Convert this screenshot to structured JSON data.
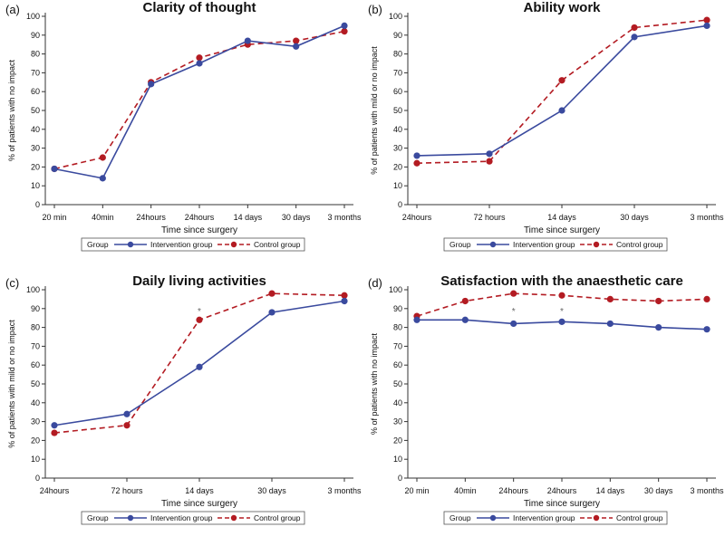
{
  "colors": {
    "intervention": "#3a4a9e",
    "control": "#b31b22"
  },
  "chart_data": [
    {
      "panel_label": "(a)",
      "type": "line",
      "title": "Clarity of thought",
      "xlabel": "Time since surgery",
      "ylabel": "% of patients with no impact",
      "ylim": [
        0,
        100
      ],
      "yticks": [
        "0",
        "10",
        "20",
        "30",
        "40",
        "50",
        "60",
        "70",
        "80",
        "90",
        "100"
      ],
      "categories": [
        "20 min",
        "40min",
        "24hours",
        "24hours",
        "14 days",
        "30 days",
        "3 months"
      ],
      "series": [
        {
          "name": "Intervention group",
          "values": [
            19,
            14,
            64,
            75,
            87,
            84,
            95
          ]
        },
        {
          "name": "Control group",
          "values": [
            19,
            25,
            65,
            78,
            85,
            87,
            92
          ]
        }
      ],
      "annotations": [],
      "legend_title": "Group",
      "legend_intervention": "Intervention group",
      "legend_control": "Control group"
    },
    {
      "panel_label": "(b)",
      "type": "line",
      "title": "Ability work",
      "xlabel": "Time since surgery",
      "ylabel": "% of patients with mild or no impact",
      "ylim": [
        0,
        100
      ],
      "yticks": [
        "0",
        "10",
        "20",
        "30",
        "40",
        "50",
        "60",
        "70",
        "80",
        "90",
        "100"
      ],
      "categories": [
        "24hours",
        "72 hours",
        "14 days",
        "30 days",
        "3 months"
      ],
      "series": [
        {
          "name": "Intervention group",
          "values": [
            26,
            27,
            50,
            89,
            95
          ]
        },
        {
          "name": "Control group",
          "values": [
            22,
            23,
            66,
            94,
            98
          ]
        }
      ],
      "annotations": [],
      "legend_title": "Group",
      "legend_intervention": "Intervention group",
      "legend_control": "Control group"
    },
    {
      "panel_label": "(c)",
      "type": "line",
      "title": "Daily living activities",
      "xlabel": "Time since surgery",
      "ylabel": "% of patients with mild or no impact",
      "ylim": [
        0,
        100
      ],
      "yticks": [
        "0",
        "10",
        "20",
        "30",
        "40",
        "50",
        "60",
        "70",
        "80",
        "90",
        "100"
      ],
      "categories": [
        "24hours",
        "72 hours",
        "14 days",
        "30 days",
        "3 months"
      ],
      "series": [
        {
          "name": "Intervention group",
          "values": [
            28,
            34,
            59,
            88,
            94
          ]
        },
        {
          "name": "Control group",
          "values": [
            24,
            28,
            84,
            98,
            97
          ]
        }
      ],
      "annotations": [
        {
          "category_index": 2,
          "value": 89,
          "text": "*"
        }
      ],
      "legend_title": "Group",
      "legend_intervention": "Intervention group",
      "legend_control": "Control group"
    },
    {
      "panel_label": "(d)",
      "type": "line",
      "title": "Satisfaction with the anaesthetic care",
      "xlabel": "Time since surgery",
      "ylabel": "% of patients with no impact",
      "ylim": [
        0,
        100
      ],
      "yticks": [
        "0",
        "10",
        "20",
        "30",
        "40",
        "50",
        "60",
        "70",
        "80",
        "90",
        "100"
      ],
      "categories": [
        "20 min",
        "40min",
        "24hours",
        "24hours",
        "14 days",
        "30 days",
        "3 months"
      ],
      "series": [
        {
          "name": "Intervention group",
          "values": [
            84,
            84,
            82,
            83,
            82,
            80,
            79
          ]
        },
        {
          "name": "Control group",
          "values": [
            86,
            94,
            98,
            97,
            95,
            94,
            95
          ]
        }
      ],
      "annotations": [
        {
          "category_index": 2,
          "value": 89,
          "text": "*"
        },
        {
          "category_index": 3,
          "value": 89,
          "text": "*"
        }
      ],
      "legend_title": "Group",
      "legend_intervention": "Intervention group",
      "legend_control": "Control group"
    }
  ]
}
